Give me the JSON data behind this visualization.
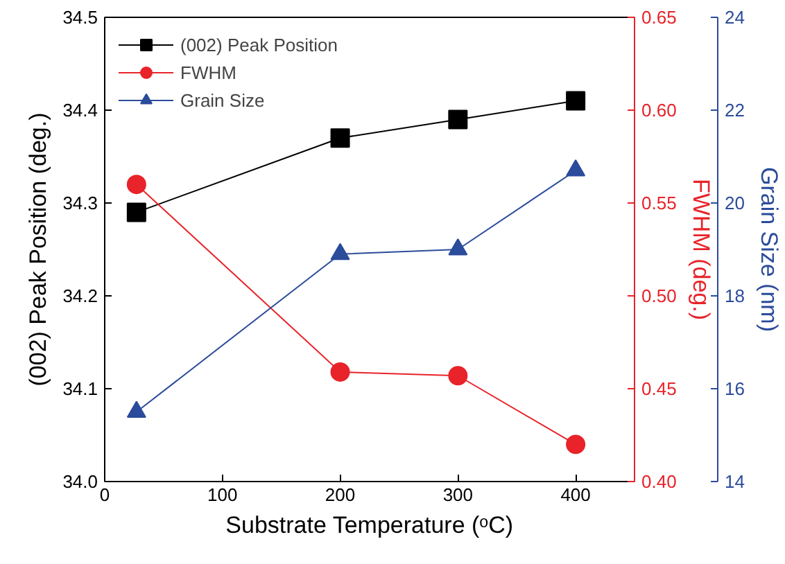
{
  "chart_data": {
    "type": "line",
    "xlabel": "Substrate Temperature (ᵒC)",
    "ylabel": "(002) Peak Position (deg.)",
    "y2label": "FWHM (deg.)",
    "y3label": "Grain Size (nm)",
    "x": [
      27,
      200,
      300,
      400
    ],
    "xlim": [
      0,
      450
    ],
    "xticks": [
      0,
      100,
      200,
      300,
      400
    ],
    "ylim": [
      34.0,
      34.5
    ],
    "yticks": [
      {
        "value": 34.0,
        "label": "34.0"
      },
      {
        "value": 34.1,
        "label": "34.1"
      },
      {
        "value": 34.2,
        "label": "34.2"
      },
      {
        "value": 34.3,
        "label": "34.3"
      },
      {
        "value": 34.4,
        "label": "34.4"
      },
      {
        "value": 34.5,
        "label": "34.5"
      }
    ],
    "y2lim": [
      0.4,
      0.65
    ],
    "y2ticks": [
      {
        "value": 0.4,
        "label": "0.40"
      },
      {
        "value": 0.45,
        "label": "0.45"
      },
      {
        "value": 0.5,
        "label": "0.50"
      },
      {
        "value": 0.55,
        "label": "0.55"
      },
      {
        "value": 0.6,
        "label": "0.60"
      },
      {
        "value": 0.65,
        "label": "0.65"
      }
    ],
    "y3lim": [
      14,
      24
    ],
    "y3ticks": [
      14,
      16,
      18,
      20,
      22,
      24
    ],
    "legend": "top left",
    "grid": false,
    "series": [
      {
        "name": "(002) Peak Position",
        "color": "#000000",
        "marker": "square",
        "values": [
          34.29,
          34.37,
          34.39,
          34.41
        ]
      },
      {
        "name": "FWHM",
        "color": "#e8232a",
        "marker": "circle",
        "axis": "y2",
        "values": [
          0.56,
          0.459,
          0.457,
          0.42
        ]
      },
      {
        "name": "Grain Size",
        "color": "#2b4b9b",
        "marker": "triangle",
        "axis": "y3",
        "values": [
          15.5,
          18.9,
          19.0,
          20.7
        ]
      }
    ]
  }
}
